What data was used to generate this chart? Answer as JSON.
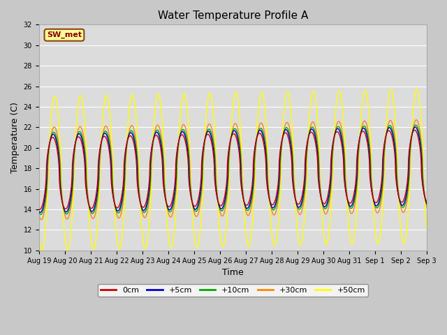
{
  "title": "Water Temperature Profile A",
  "xlabel": "Time",
  "ylabel": "Temperature (C)",
  "ylim": [
    10,
    32
  ],
  "yticks": [
    10,
    12,
    14,
    16,
    18,
    20,
    22,
    24,
    26,
    28,
    30,
    32
  ],
  "fig_bg_color": "#c8c8c8",
  "plot_bg_color": "#dcdcdc",
  "legend_label": "SW_met",
  "legend_bg": "#ffff99",
  "legend_border": "#8b4513",
  "series_colors": [
    "#cc0000",
    "#0000cc",
    "#00aa00",
    "#ff8800",
    "#ffff00"
  ],
  "series_labels": [
    "0cm",
    "+5cm",
    "+10cm",
    "+30cm",
    "+50cm"
  ],
  "num_days": 15,
  "x_tick_labels": [
    "Aug 19",
    "Aug 20",
    "Aug 21",
    "Aug 22",
    "Aug 23",
    "Aug 24",
    "Aug 25",
    "Aug 26",
    "Aug 27",
    "Aug 28",
    "Aug 29",
    "Aug 30",
    "Aug 31",
    "Sep 1",
    "Sep 2",
    "Sep 3"
  ],
  "base_temp": 17.5,
  "amp_50cm": 7.5,
  "amp_30cm": 4.5,
  "amp_10cm": 4.0,
  "amp_5cm": 3.8,
  "amp_0cm": 3.5,
  "phase_shift": 0.28,
  "trend_slope": 0.05
}
